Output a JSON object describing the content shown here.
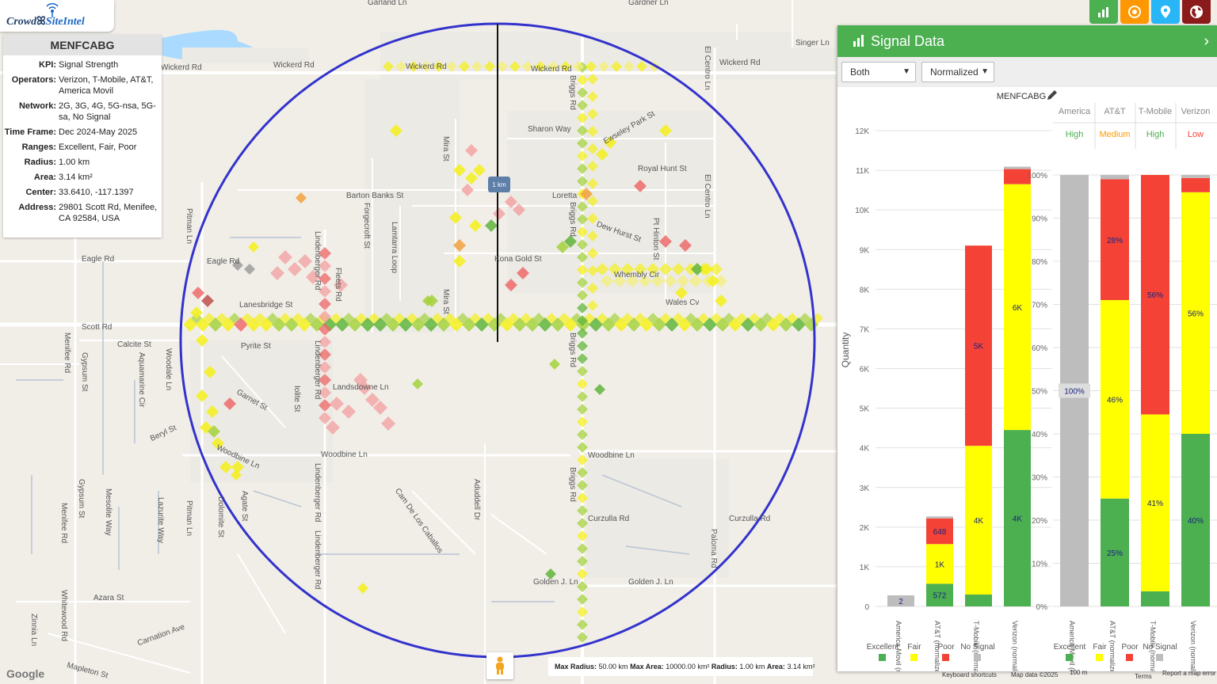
{
  "app": {
    "logo_part1": "Crowd",
    "logo_part2": "SiteIntel"
  },
  "site": {
    "name": "MENFCABG",
    "fields": [
      {
        "k": "KPI:",
        "v": "Signal Strength"
      },
      {
        "k": "Operators:",
        "v": "Verizon, T-Mobile, AT&T, America Movil"
      },
      {
        "k": "Network:",
        "v": "2G, 3G, 4G, 5G-nsa, 5G-sa, No Signal"
      },
      {
        "k": "Time Frame:",
        "v": "Dec 2024-May 2025"
      },
      {
        "k": "Ranges:",
        "v": "Excellent, Fair, Poor"
      },
      {
        "k": "Radius:",
        "v": "1.00 km"
      },
      {
        "k": "Area:",
        "v": "3.14 km²"
      },
      {
        "k": "Center:",
        "v": "33.6410, -117.1397"
      },
      {
        "k": "Address:",
        "v": "29801 Scott Rd, Menifee, CA 92584, USA"
      }
    ]
  },
  "toolbar": {
    "buttons": [
      {
        "name": "chart-button",
        "icon": "bar-chart-icon",
        "color": "#4caf50"
      },
      {
        "name": "target-button",
        "icon": "target-icon",
        "color": "#ff9800"
      },
      {
        "name": "location-button",
        "icon": "map-pin-icon",
        "color": "#29b6f6"
      },
      {
        "name": "globe-button",
        "icon": "globe-icon",
        "color": "#8b1a1a"
      }
    ]
  },
  "map": {
    "scale_label": "1 km",
    "streets": [
      {
        "t": "Garland Ln"
      },
      {
        "t": "Gardner Ln"
      },
      {
        "t": "Wickerd Rd"
      },
      {
        "t": "Wickerd Rd"
      },
      {
        "t": "Wickerd Rd"
      },
      {
        "t": "Wickerd Rd"
      },
      {
        "t": "Wickerd Rd"
      },
      {
        "t": "Sharon Way"
      },
      {
        "t": "Barton Banks St"
      },
      {
        "t": "Loretta"
      },
      {
        "t": "Royal Hunt St"
      },
      {
        "t": "Eagle Rd"
      },
      {
        "t": "Eagle Rd"
      },
      {
        "t": "Kona Gold St"
      },
      {
        "t": "Scott Rd"
      },
      {
        "t": "Calcite St"
      },
      {
        "t": "Pyrite St"
      },
      {
        "t": "Lanesbridge St"
      },
      {
        "t": "Wales Cv"
      },
      {
        "t": "Garnet St"
      },
      {
        "t": "Landsdowne Ln"
      },
      {
        "t": "Beryl St"
      },
      {
        "t": "Woodbine Ln"
      },
      {
        "t": "Woodbine Ln"
      },
      {
        "t": "Woodbine Ln"
      },
      {
        "t": "Curzulla Rd"
      },
      {
        "t": "Curzulla Rd"
      },
      {
        "t": "Golden J. Ln"
      },
      {
        "t": "Golden J. Ln"
      },
      {
        "t": "Azara St"
      },
      {
        "t": "Carnation Ave"
      },
      {
        "t": "Mapleton St"
      },
      {
        "t": "Singer Ln"
      },
      {
        "t": "Cam De Los Caballos"
      },
      {
        "t": "Whembly Cir"
      },
      {
        "t": "Dew Hurst St"
      },
      {
        "t": "Ewseley Park St"
      }
    ],
    "vstreets": [
      {
        "t": "Menifee Rd"
      },
      {
        "t": "Menifee Rd"
      },
      {
        "t": "Gypsum St"
      },
      {
        "t": "Mesolite Way"
      },
      {
        "t": "Lazurite Way"
      },
      {
        "t": "Pitman Ln"
      },
      {
        "t": "Pitman Ln"
      },
      {
        "t": "Dolomite St"
      },
      {
        "t": "Agate St"
      },
      {
        "t": "Iolite St"
      },
      {
        "t": "Lindenberger Rd"
      },
      {
        "t": "Lindenberger Rd"
      },
      {
        "t": "Lindenberger Rd"
      },
      {
        "t": "Lindenberger Rd"
      },
      {
        "t": "Fleets Rd"
      },
      {
        "t": "Forgecroft St"
      },
      {
        "t": "Lamtarra Loop"
      },
      {
        "t": "Mira St"
      },
      {
        "t": "Mira St"
      },
      {
        "t": "Briggs Rd"
      },
      {
        "t": "Briggs Rd"
      },
      {
        "t": "Briggs Rd"
      },
      {
        "t": "Briggs Rd"
      },
      {
        "t": "El Centro Ln"
      },
      {
        "t": "El Centro Ln"
      },
      {
        "t": "Paloma Rd"
      },
      {
        "t": "Aduddell Dr"
      },
      {
        "t": "Whitewood Rd"
      },
      {
        "t": "Zinnia Ln"
      },
      {
        "t": "Pt Hinton St"
      },
      {
        "t": "Gypsum St"
      },
      {
        "t": "Aquamarine Cir"
      },
      {
        "t": "Woodale Ln"
      }
    ]
  },
  "bottom": {
    "max_radius_label": "Max Radius:",
    "max_radius": "50.00 km",
    "max_area_label": "Max Area:",
    "max_area": "10000.00 km²",
    "radius_label": "Radius:",
    "radius": "1.00 km",
    "area_label": "Area:",
    "area": "3.14 km²",
    "keyboard": "Keyboard shortcuts",
    "mapdata": "Map data ©2025",
    "scale": "100 m",
    "terms": "Terms",
    "report": "Report a map error",
    "google": "Google"
  },
  "panel": {
    "title": "Signal Data",
    "filter": "Both",
    "mode": "Normalized",
    "chart_title": "MENFCABG",
    "ylabel": "Quantity"
  },
  "colors": {
    "excellent": "#4caf50",
    "fair": "#ffff00",
    "poor": "#f44336",
    "nosignal": "#bdbdbd"
  },
  "chart_data": [
    {
      "type": "bar",
      "stacked": true,
      "title": "MENFCABG",
      "ylabel": "Quantity",
      "ylim": [
        0,
        12000
      ],
      "yticks": [
        "0",
        "1K",
        "2K",
        "3K",
        "4K",
        "5K",
        "6K",
        "7K",
        "8K",
        "9K",
        "10K",
        "11K",
        "12K"
      ],
      "categories": [
        "America Movil (normalized)",
        "AT&T (normalized)",
        "T-Mobile (normalized)",
        "Verizon (normalized)"
      ],
      "series": [
        {
          "name": "Excellent",
          "values": [
            0,
            572,
            300,
            4450
          ]
        },
        {
          "name": "Fair",
          "values": [
            0,
            1000,
            3750,
            6200
          ]
        },
        {
          "name": "Poor",
          "values": [
            0,
            648,
            5050,
            380
          ]
        },
        {
          "name": "No Signal",
          "values": [
            2,
            50,
            0,
            60
          ]
        }
      ],
      "data_labels": [
        {
          "cat": 0,
          "series": "No Signal",
          "label": "2"
        },
        {
          "cat": 1,
          "series": "Excellent",
          "label": "572"
        },
        {
          "cat": 1,
          "series": "Fair",
          "label": "1K"
        },
        {
          "cat": 1,
          "series": "Poor",
          "label": "648"
        },
        {
          "cat": 2,
          "series": "Fair",
          "label": "4K"
        },
        {
          "cat": 2,
          "series": "Poor",
          "label": "5K"
        },
        {
          "cat": 3,
          "series": "Excellent",
          "label": "4K"
        },
        {
          "cat": 3,
          "series": "Fair",
          "label": "6K"
        }
      ],
      "legend": [
        "Excellent",
        "Fair",
        "Poor",
        "No Signal"
      ]
    },
    {
      "type": "bar",
      "stacked": true,
      "ylim": [
        0,
        100
      ],
      "yticks": [
        "0%",
        "10%",
        "20%",
        "30%",
        "40%",
        "50%",
        "60%",
        "70%",
        "80%",
        "90%",
        "100%"
      ],
      "header_operators": [
        "America",
        "AT&T",
        "T-Mobile",
        "Verizon"
      ],
      "header_ratings": [
        "High",
        "Medium",
        "High",
        "Low"
      ],
      "rating_colors": [
        "#4caf50",
        "#ff9800",
        "#4caf50",
        "#f44336"
      ],
      "categories": [
        "America Movil (normalized)",
        "AT&T (normalized)",
        "T-Mobile (normalized)",
        "Verizon (normalized)"
      ],
      "series": [
        {
          "name": "Excellent",
          "values": [
            0,
            25,
            3.5,
            40
          ]
        },
        {
          "name": "Fair",
          "values": [
            0,
            46,
            41,
            56
          ]
        },
        {
          "name": "Poor",
          "values": [
            0,
            28,
            55.5,
            3.3
          ]
        },
        {
          "name": "No Signal",
          "values": [
            100,
            1,
            0,
            0.7
          ]
        }
      ],
      "data_labels": [
        {
          "cat": 0,
          "series": "No Signal",
          "label": "100%"
        },
        {
          "cat": 1,
          "series": "Excellent",
          "label": "25%"
        },
        {
          "cat": 1,
          "series": "Fair",
          "label": "46%"
        },
        {
          "cat": 1,
          "series": "Poor",
          "label": "28%"
        },
        {
          "cat": 2,
          "series": "Fair",
          "label": "41%"
        },
        {
          "cat": 2,
          "series": "Poor",
          "label": "56%"
        },
        {
          "cat": 3,
          "series": "Excellent",
          "label": "40%"
        },
        {
          "cat": 3,
          "series": "Fair",
          "label": "56%"
        }
      ],
      "legend": [
        "Excellent",
        "Fair",
        "Poor",
        "No Signal"
      ]
    }
  ]
}
